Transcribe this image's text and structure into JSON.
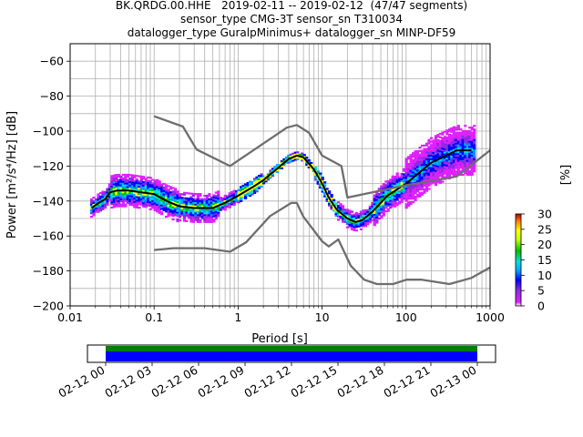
{
  "title_lines": [
    "BK.QRDG.00.HHE   2019-02-11 -- 2019-02-12  (47/47 segments)",
    "sensor_type CMG-3T sensor_sn T310034",
    "datalogger_type GuralpMinimus+ datalogger_sn MINP-DF59"
  ],
  "chart_data": {
    "type": "heatmap",
    "xlabel": "Period [s]",
    "ylabel": "Power [m²/s⁴/Hz] [dB]",
    "xscale": "log",
    "xlim": [
      0.01,
      1000
    ],
    "ylim": [
      -200,
      -50
    ],
    "x_ticks": [
      "0.01",
      "0.1",
      "1",
      "10",
      "100",
      "1000"
    ],
    "y_ticks": [
      "-60",
      "-80",
      "-100",
      "-120",
      "-140",
      "-160",
      "-180",
      "-200"
    ],
    "grid": true,
    "colorbar": {
      "label": "[%]",
      "ticks": [
        "0",
        "5",
        "10",
        "15",
        "20",
        "25",
        "30"
      ],
      "range": [
        0,
        30
      ]
    },
    "series": [
      {
        "role": "mode",
        "color": "#000000",
        "points": [
          [
            0.018,
            -144
          ],
          [
            0.022,
            -141
          ],
          [
            0.026,
            -139
          ],
          [
            0.03,
            -135
          ],
          [
            0.036,
            -134
          ],
          [
            0.05,
            -134
          ],
          [
            0.07,
            -135
          ],
          [
            0.1,
            -136
          ],
          [
            0.14,
            -140
          ],
          [
            0.2,
            -143
          ],
          [
            0.3,
            -144
          ],
          [
            0.5,
            -144
          ],
          [
            0.7,
            -141
          ],
          [
            1.0,
            -137
          ],
          [
            1.5,
            -132
          ],
          [
            2.0,
            -128
          ],
          [
            3.0,
            -121
          ],
          [
            4.0,
            -116
          ],
          [
            5.0,
            -114
          ],
          [
            6.0,
            -115
          ],
          [
            8.0,
            -122
          ],
          [
            10,
            -130
          ],
          [
            12,
            -138
          ],
          [
            15,
            -145
          ],
          [
            20,
            -150
          ],
          [
            25,
            -152
          ],
          [
            30,
            -151
          ],
          [
            40,
            -146
          ],
          [
            60,
            -137
          ],
          [
            80,
            -133
          ],
          [
            100,
            -130
          ],
          [
            150,
            -123
          ],
          [
            200,
            -118
          ],
          [
            300,
            -114
          ],
          [
            400,
            -111
          ],
          [
            600,
            -111
          ]
        ]
      },
      {
        "role": "high-noise-model",
        "color": "#6e6e6e",
        "points": [
          [
            0.1,
            -91.5
          ],
          [
            0.22,
            -97.4
          ],
          [
            0.32,
            -110.5
          ],
          [
            0.8,
            -120
          ],
          [
            3.8,
            -98
          ],
          [
            5.0,
            -96.5
          ],
          [
            7.0,
            -101
          ],
          [
            10,
            -114
          ],
          [
            17,
            -120
          ],
          [
            20,
            -138
          ],
          [
            100,
            -131
          ],
          [
            400,
            -126
          ],
          [
            1000,
            -111
          ]
        ]
      },
      {
        "role": "low-noise-model",
        "color": "#6e6e6e",
        "points": [
          [
            0.1,
            -168
          ],
          [
            0.17,
            -167
          ],
          [
            0.4,
            -167
          ],
          [
            0.8,
            -169
          ],
          [
            1.24,
            -163.7
          ],
          [
            2.4,
            -148.6
          ],
          [
            4.3,
            -141.1
          ],
          [
            5.0,
            -141.1
          ],
          [
            6.0,
            -149
          ],
          [
            10,
            -163
          ],
          [
            12,
            -166
          ],
          [
            15.6,
            -162
          ],
          [
            21.9,
            -177
          ],
          [
            31.6,
            -185
          ],
          [
            45,
            -187.5
          ],
          [
            70,
            -187.5
          ],
          [
            101,
            -185
          ],
          [
            154,
            -185
          ],
          [
            328,
            -187.5
          ],
          [
            600,
            -184
          ],
          [
            1000,
            -178
          ]
        ]
      }
    ],
    "time_axis": {
      "ticks": [
        "02-12 00",
        "02-12 03",
        "02-12 06",
        "02-12 09",
        "02-12 12",
        "02-12 15",
        "02-12 18",
        "02-12 21",
        "02-13 00"
      ],
      "coverage_colors": [
        "#008000",
        "#0000ff"
      ]
    }
  }
}
